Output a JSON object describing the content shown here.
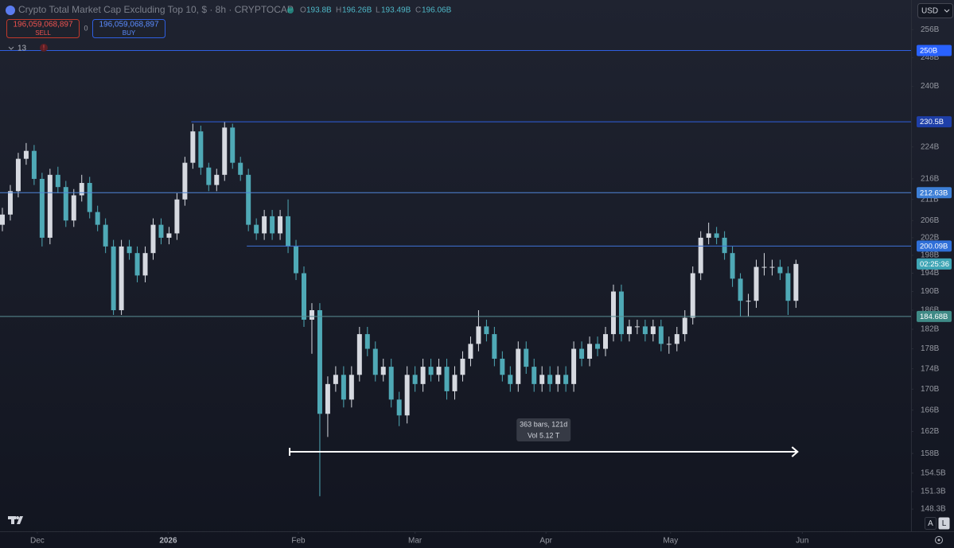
{
  "chart_data": {
    "type": "candlestick",
    "title": "Crypto Total Market Cap Excluding Top 10, $ · 8h · CRYPTOCAP",
    "ohlc_readout": [
      {
        "label": "O",
        "value": "193.8B"
      },
      {
        "label": "H",
        "value": "196.26B"
      },
      {
        "label": "L",
        "value": "193.49B"
      },
      {
        "label": "C",
        "value": "196.06B"
      }
    ],
    "sell": {
      "price": "196,059,068,897",
      "label": "SELL"
    },
    "buy": {
      "price": "196,059,068,897",
      "label": "BUY"
    },
    "spread": "0",
    "indicator_count": "13",
    "currency": "USD",
    "countdown": "02:25:36",
    "scale_buttons": [
      "A",
      "L"
    ],
    "log_scale": true,
    "up_color": "#d6d9e0",
    "down_color": "#4fa9b6",
    "ylim": [
      144.6,
      264.8
    ],
    "yticks": [
      {
        "value": 256,
        "label": "256B"
      },
      {
        "value": 248,
        "label": "248B"
      },
      {
        "value": 240,
        "label": "240B"
      },
      {
        "value": 224,
        "label": "224B"
      },
      {
        "value": 216,
        "label": "216B"
      },
      {
        "value": 211,
        "label": "211B"
      },
      {
        "value": 206,
        "label": "206B"
      },
      {
        "value": 202,
        "label": "202B"
      },
      {
        "value": 198,
        "label": "198B"
      },
      {
        "value": 194,
        "label": "194B"
      },
      {
        "value": 190,
        "label": "190B"
      },
      {
        "value": 186,
        "label": "186B"
      },
      {
        "value": 182,
        "label": "182B"
      },
      {
        "value": 178,
        "label": "178B"
      },
      {
        "value": 174,
        "label": "174B"
      },
      {
        "value": 170,
        "label": "170B"
      },
      {
        "value": 166,
        "label": "166B"
      },
      {
        "value": 162,
        "label": "162B"
      },
      {
        "value": 158,
        "label": "158B"
      },
      {
        "value": 154.5,
        "label": "154.5B"
      },
      {
        "value": 151.3,
        "label": "151.3B"
      },
      {
        "value": 148.3,
        "label": "148.3B"
      }
    ],
    "xlim": [
      -0.3,
      114.5
    ],
    "xticks": [
      {
        "value": 4.4,
        "label": "Dec"
      },
      {
        "value": 20.9,
        "label": "2026"
      },
      {
        "value": 37.3,
        "label": "Feb"
      },
      {
        "value": 52,
        "label": "Mar"
      },
      {
        "value": 68.5,
        "label": "Apr"
      },
      {
        "value": 84.2,
        "label": "May"
      },
      {
        "value": 100.8,
        "label": "Jun"
      }
    ],
    "levels": [
      {
        "value": 250,
        "label": "250B",
        "start": -0.3,
        "color": "#2f5fe0",
        "label_color": "#2962ff"
      },
      {
        "value": 230.5,
        "label": "230.5B",
        "start": 23.8,
        "color": "#2f5fe0",
        "label_color": "#1e3fa8"
      },
      {
        "value": 212.63,
        "label": "212.63B",
        "start": -0.3,
        "color": "#4f86d8",
        "label_color": "#3d7fd6"
      },
      {
        "value": 200.09,
        "label": "200.09B",
        "start": 30.8,
        "color": "#3f73d8",
        "label_color": "#2f6fd8"
      },
      {
        "value": 184.68,
        "label": "184.68B",
        "start": -0.3,
        "color": "#5a8f95",
        "label_color": "#3f8a86"
      }
    ],
    "measure": {
      "x": [
        36.2,
        100.2
      ],
      "y": 158.3,
      "lines": [
        "363 bars, 121d",
        "Vol 5.12 T"
      ]
    },
    "open": [
      205,
      207.4,
      213,
      221,
      223,
      216,
      202,
      217,
      214,
      206,
      212,
      215,
      208,
      205,
      200,
      186,
      200,
      198.5,
      193.5,
      198.5,
      205,
      202,
      203,
      211,
      220,
      228,
      218.8,
      214.5,
      217,
      229,
      220,
      217,
      205,
      203,
      207,
      203,
      207,
      200,
      194,
      184,
      186,
      165.3,
      171,
      172.8,
      168,
      172.8,
      181,
      178,
      172.8,
      174.4,
      168,
      165,
      172.8,
      171,
      174.4,
      172.8,
      174.4,
      169.6,
      172.8,
      176,
      179,
      182.6,
      181,
      176,
      172.8,
      171,
      178,
      174.4,
      171,
      172.8,
      171,
      172.8,
      171,
      178,
      176,
      179,
      178,
      181,
      190,
      181,
      182.6,
      182.6,
      181,
      182.6,
      179,
      179,
      181,
      184.4,
      194,
      202,
      203,
      202,
      198.5,
      192.8,
      188,
      188,
      195.4,
      195.4,
      195.4,
      194,
      188
    ],
    "high": [
      209,
      214.5,
      222.5,
      225,
      224.5,
      217.5,
      218.5,
      219,
      215.5,
      213.5,
      217,
      216.5,
      209.5,
      206.5,
      201.5,
      201.5,
      201.5,
      200,
      200,
      206.5,
      206.5,
      204.5,
      212.5,
      221.5,
      230,
      229.5,
      220,
      218.5,
      230.5,
      230,
      221.5,
      218.5,
      206.5,
      208.5,
      208.5,
      208.5,
      211,
      201.5,
      195.5,
      187.5,
      187.5,
      172.5,
      174.5,
      174.5,
      174.5,
      182.5,
      182.5,
      179.5,
      176,
      176,
      169.5,
      174.5,
      174.5,
      176,
      176,
      176,
      176,
      174.5,
      177.5,
      180.5,
      186,
      184,
      182.5,
      177.5,
      174.5,
      179.5,
      179.5,
      176,
      174.5,
      174.5,
      174.5,
      174.5,
      179.5,
      179.5,
      180.5,
      180.5,
      182.5,
      191.5,
      191.5,
      184,
      184,
      184,
      184,
      184,
      180.5,
      182.5,
      186,
      195.5,
      203.5,
      205.5,
      204.5,
      203.5,
      200,
      194,
      189.5,
      197,
      198.5,
      197,
      197,
      195.5,
      197
    ],
    "low": [
      203.5,
      206,
      211.5,
      219.5,
      214.5,
      200,
      200.5,
      212.5,
      204.5,
      204.5,
      210.5,
      206.5,
      203.5,
      198.5,
      185,
      185,
      197,
      192,
      192,
      197,
      200.5,
      200.5,
      201.5,
      209.5,
      218.5,
      217,
      213,
      213,
      215.5,
      218.5,
      215.5,
      203.5,
      201.5,
      201.5,
      201.5,
      201.5,
      198.5,
      192.5,
      182.5,
      177,
      150.5,
      161,
      169.5,
      166.5,
      166.5,
      171.5,
      176.5,
      171.5,
      171.5,
      166.5,
      163,
      163.5,
      169.5,
      169.5,
      171.5,
      171.5,
      168,
      168,
      171.5,
      174.5,
      177.5,
      179.5,
      174.5,
      171.5,
      169.5,
      169.5,
      173,
      169.5,
      169.5,
      169.5,
      169.5,
      169.5,
      169.5,
      174.5,
      174.5,
      176.5,
      176.5,
      179.5,
      179.5,
      179.5,
      181,
      179.5,
      179.5,
      177.5,
      177,
      177.5,
      179.5,
      183,
      192.5,
      200.5,
      200.5,
      197,
      191,
      184.7,
      184.7,
      186.5,
      193.5,
      193.5,
      192.5,
      185,
      186.5
    ],
    "close": [
      207.4,
      213,
      221,
      223,
      216,
      202,
      217,
      214,
      206,
      212,
      215,
      208,
      205,
      200,
      186,
      200,
      198.5,
      193.5,
      198.5,
      205,
      202,
      203,
      211,
      220,
      228,
      218.8,
      214.5,
      217,
      229,
      220,
      217,
      205,
      203,
      207,
      203,
      207,
      200,
      194,
      184,
      186,
      165.3,
      171,
      172.8,
      168,
      172.8,
      181,
      178,
      172.8,
      174.4,
      168,
      165,
      172.8,
      171,
      174.4,
      172.8,
      174.4,
      169.6,
      172.8,
      176,
      179,
      182.6,
      181,
      176,
      172.8,
      171,
      178,
      174.4,
      171,
      172.8,
      171,
      172.8,
      171,
      178,
      176,
      179,
      178,
      181,
      190,
      181,
      182.6,
      182.6,
      181,
      182.6,
      179,
      179,
      181,
      184.4,
      194,
      202,
      203,
      202,
      198.5,
      192.8,
      188,
      188,
      195.4,
      195.4,
      195.4,
      194,
      188,
      196.06
    ]
  }
}
